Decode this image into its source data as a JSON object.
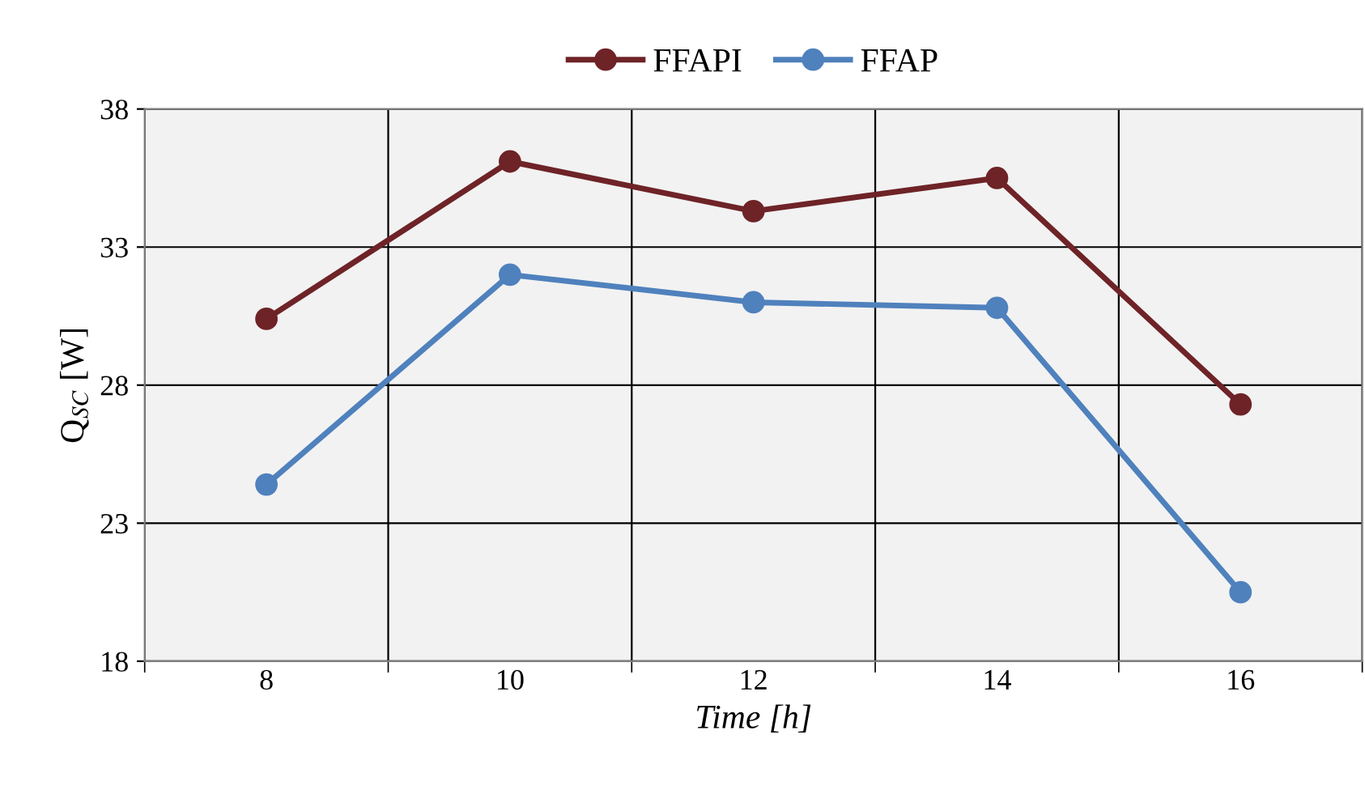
{
  "chart_data": {
    "type": "line",
    "xlabel": "Time [h]",
    "ylabel": "Q$_{SC}$ [W]",
    "categories": [
      "8",
      "10",
      "12",
      "14",
      "16"
    ],
    "series": [
      {
        "name": "FFAPI",
        "color": "#6e2327",
        "values": [
          30.4,
          36.1,
          34.3,
          35.5,
          27.3
        ]
      },
      {
        "name": "FFAP",
        "color": "#4f81bd",
        "values": [
          24.4,
          32.0,
          31.0,
          30.8,
          20.5
        ]
      }
    ],
    "ylim": [
      18,
      38
    ],
    "yticks": [
      18,
      23,
      28,
      33,
      38
    ],
    "grid": true,
    "legend": "top",
    "marker": "circle",
    "line_style": "solid"
  }
}
